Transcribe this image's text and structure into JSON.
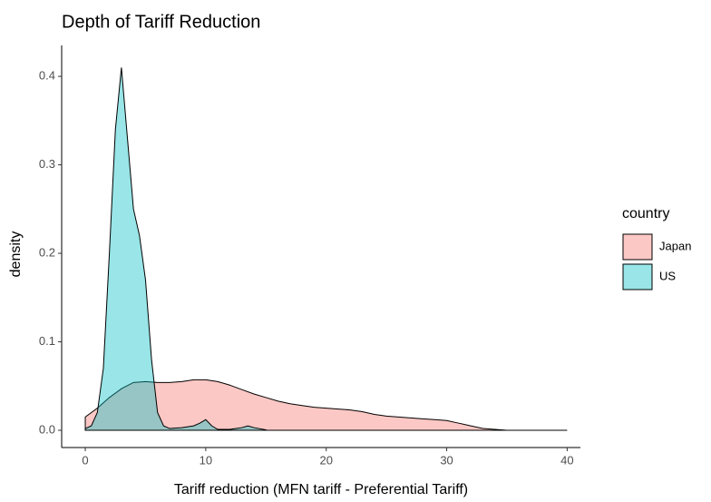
{
  "chart_data": {
    "type": "density",
    "title": "Depth of Tariff Reduction",
    "x_label": "Tariff reduction (MFN tariff - Preferential Tariff)",
    "y_label": "density",
    "legend_title": "country",
    "xlim": [
      -1.96,
      41.1
    ],
    "ylim": [
      -0.0195,
      0.435
    ],
    "xticks": [
      0,
      10,
      20,
      30,
      40
    ],
    "yticks": [
      {
        "value": 0,
        "label": "0.0"
      },
      0.1,
      0.2,
      0.3,
      0.4
    ],
    "series": [
      {
        "name": "Japan",
        "color": "#F8766D",
        "x": [
          0,
          1,
          2,
          3,
          4,
          5,
          6,
          7,
          8,
          9,
          10,
          11,
          12,
          13,
          14,
          15,
          16,
          17,
          18,
          19,
          20,
          21,
          22,
          23,
          24,
          25,
          26,
          27,
          28,
          29,
          30,
          31,
          32,
          33,
          34,
          35,
          36,
          37,
          38,
          39,
          40
        ],
        "values": [
          0.015,
          0.025,
          0.037,
          0.047,
          0.054,
          0.055,
          0.054,
          0.054,
          0.055,
          0.057,
          0.057,
          0.055,
          0.051,
          0.046,
          0.041,
          0.037,
          0.033,
          0.03,
          0.028,
          0.026,
          0.025,
          0.024,
          0.023,
          0.021,
          0.018,
          0.016,
          0.015,
          0.014,
          0.013,
          0.012,
          0.011,
          0.008,
          0.005,
          0.002,
          0.001,
          0,
          0,
          0,
          0,
          0,
          0
        ]
      },
      {
        "name": "US",
        "color": "#00BFC4",
        "x": [
          0,
          0.5,
          1,
          1.5,
          2,
          2.5,
          3,
          3.5,
          4,
          4.5,
          5,
          5.5,
          6,
          6.5,
          7,
          8,
          9,
          9.5,
          10,
          10.5,
          11,
          12,
          13,
          13.5,
          14,
          15
        ],
        "values": [
          0.002,
          0.005,
          0.02,
          0.07,
          0.2,
          0.34,
          0.41,
          0.33,
          0.25,
          0.22,
          0.17,
          0.08,
          0.02,
          0.005,
          0.002,
          0.003,
          0.005,
          0.008,
          0.012,
          0.005,
          0.001,
          0.001,
          0.003,
          0.005,
          0.003,
          0.0005
        ]
      }
    ]
  }
}
